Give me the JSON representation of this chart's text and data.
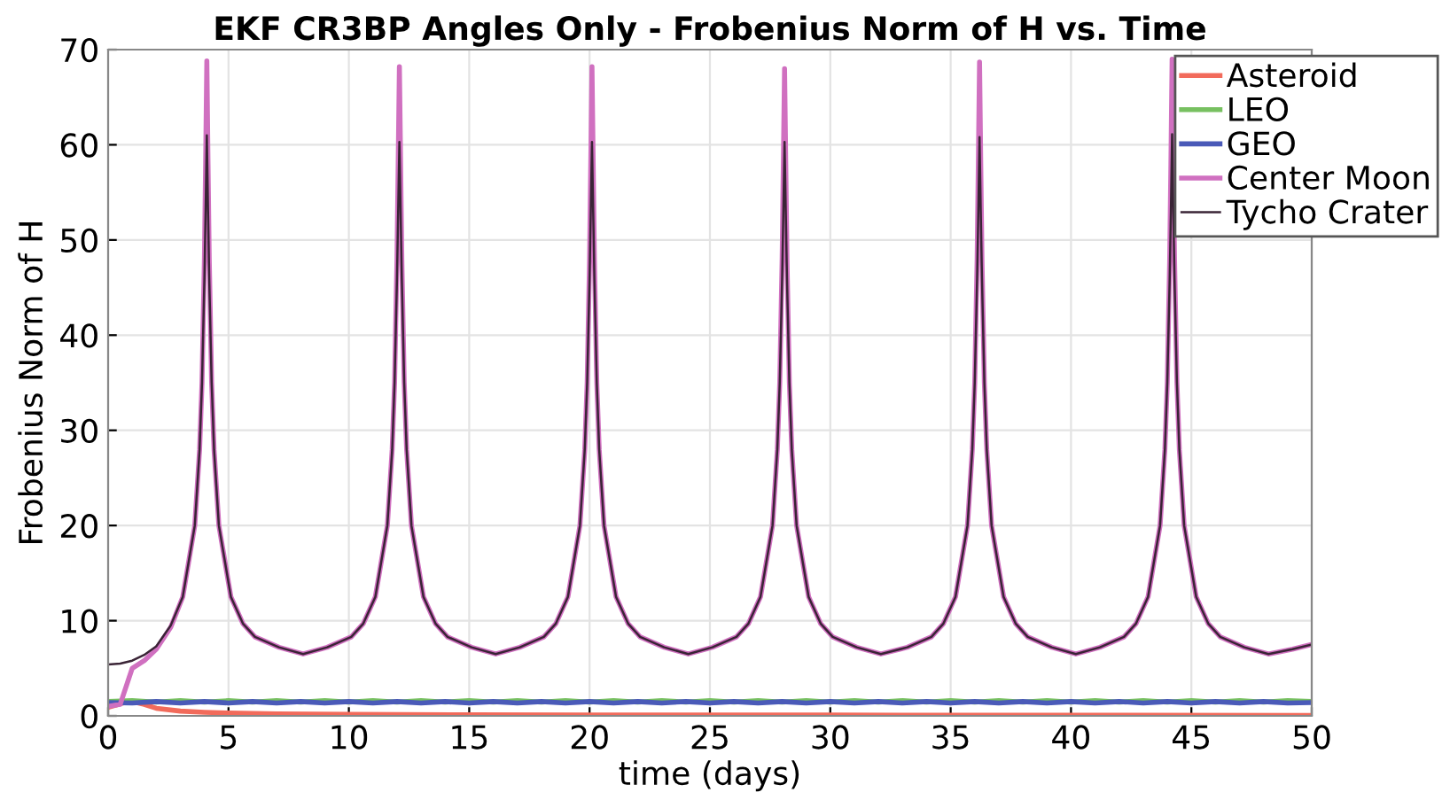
{
  "chart_data": {
    "type": "line",
    "title": "EKF CR3BP Angles Only - Frobenius Norm of H vs. Time",
    "xlabel": "time (days)",
    "ylabel": "Frobenius Norm of H",
    "xlim": [
      0,
      50
    ],
    "ylim": [
      0,
      70
    ],
    "xticks": [
      0,
      5,
      10,
      15,
      20,
      25,
      30,
      35,
      40,
      45,
      50
    ],
    "yticks": [
      0,
      10,
      20,
      30,
      40,
      50,
      60,
      70
    ],
    "grid": true,
    "legend": "top right",
    "line_style": "solid",
    "marker": "none",
    "x": [
      0,
      0.5,
      1,
      1.5,
      2,
      2.6,
      3.1,
      3.6,
      3.8,
      3.9,
      4.0,
      4.05,
      4.1,
      4.15,
      4.2,
      4.3,
      4.4,
      4.6,
      5.1,
      5.6,
      6.1,
      7.1,
      8.1,
      9.1,
      10.1,
      10.6,
      11.1,
      11.6,
      11.8,
      11.9,
      12.0,
      12.05,
      12.1,
      12.15,
      12.2,
      12.3,
      12.4,
      12.6,
      13.1,
      13.6,
      14.1,
      15.1,
      16.1,
      17.1,
      18.1,
      18.6,
      19.1,
      19.6,
      19.8,
      19.9,
      20.0,
      20.05,
      20.1,
      20.15,
      20.2,
      20.3,
      20.4,
      20.6,
      21.1,
      21.6,
      22.1,
      23.1,
      24.1,
      25.1,
      26.1,
      26.6,
      27.1,
      27.6,
      27.8,
      27.9,
      28.0,
      28.05,
      28.1,
      28.15,
      28.2,
      28.3,
      28.4,
      28.6,
      29.1,
      29.6,
      30.1,
      31.1,
      32.1,
      33.2,
      34.2,
      34.7,
      35.2,
      35.7,
      35.9,
      36.0,
      36.1,
      36.15,
      36.2,
      36.25,
      36.3,
      36.4,
      36.5,
      36.7,
      37.2,
      37.7,
      38.2,
      39.2,
      40.2,
      41.2,
      42.2,
      42.7,
      43.2,
      43.7,
      43.9,
      44.0,
      44.1,
      44.15,
      44.2,
      44.25,
      44.3,
      44.4,
      44.5,
      44.7,
      45.2,
      45.7,
      46.2,
      47.2,
      48.2,
      49.2,
      50
    ],
    "series": [
      {
        "name": "Asteroid",
        "color": "#f26b5b",
        "x": [
          0,
          0.3,
          0.6,
          1,
          1.5,
          2,
          3,
          4,
          5,
          7,
          10,
          15,
          20,
          30,
          40,
          50
        ],
        "values": [
          0.9,
          1.1,
          1.35,
          1.5,
          1.2,
          0.8,
          0.5,
          0.38,
          0.3,
          0.2,
          0.15,
          0.12,
          0.1,
          0.08,
          0.06,
          0.05
        ]
      },
      {
        "name": "LEO",
        "color": "#77c060",
        "x": [
          0,
          1,
          2,
          3,
          4,
          5,
          6,
          7,
          8,
          9,
          10,
          11,
          12,
          13,
          14,
          15,
          16,
          17,
          18,
          19,
          20,
          21,
          22,
          23,
          24,
          25,
          26,
          27,
          28,
          29,
          30,
          31,
          32,
          33,
          34,
          35,
          36,
          37,
          38,
          39,
          40,
          41,
          42,
          43,
          44,
          45,
          46,
          47,
          48,
          49,
          50
        ],
        "values": [
          1.5,
          1.6,
          1.45,
          1.6,
          1.45,
          1.6,
          1.45,
          1.6,
          1.45,
          1.6,
          1.45,
          1.6,
          1.45,
          1.6,
          1.45,
          1.6,
          1.45,
          1.6,
          1.45,
          1.6,
          1.45,
          1.6,
          1.45,
          1.6,
          1.45,
          1.6,
          1.45,
          1.6,
          1.45,
          1.6,
          1.45,
          1.6,
          1.45,
          1.6,
          1.45,
          1.6,
          1.45,
          1.6,
          1.45,
          1.6,
          1.45,
          1.6,
          1.45,
          1.6,
          1.45,
          1.6,
          1.45,
          1.6,
          1.45,
          1.6,
          1.5
        ]
      },
      {
        "name": "GEO",
        "color": "#4a5ab8",
        "x": [
          0,
          1,
          2,
          3,
          4,
          5,
          6,
          7,
          8,
          9,
          10,
          11,
          12,
          13,
          14,
          15,
          16,
          17,
          18,
          19,
          20,
          21,
          22,
          23,
          24,
          25,
          26,
          27,
          28,
          29,
          30,
          31,
          32,
          33,
          34,
          35,
          36,
          37,
          38,
          39,
          40,
          41,
          42,
          43,
          44,
          45,
          46,
          47,
          48,
          49,
          50
        ],
        "values": [
          1.4,
          1.35,
          1.5,
          1.35,
          1.5,
          1.35,
          1.5,
          1.35,
          1.5,
          1.35,
          1.5,
          1.35,
          1.5,
          1.35,
          1.5,
          1.35,
          1.5,
          1.35,
          1.5,
          1.35,
          1.5,
          1.35,
          1.5,
          1.35,
          1.5,
          1.35,
          1.5,
          1.35,
          1.5,
          1.35,
          1.5,
          1.35,
          1.5,
          1.35,
          1.5,
          1.35,
          1.5,
          1.35,
          1.5,
          1.35,
          1.5,
          1.35,
          1.5,
          1.35,
          1.5,
          1.35,
          1.5,
          1.35,
          1.5,
          1.35,
          1.4
        ]
      },
      {
        "name": "Center Moon",
        "color": "#d070c0",
        "values": [
          1.0,
          1.2,
          5.0,
          5.8,
          7.0,
          9.3,
          12.5,
          20,
          28,
          35,
          48,
          58,
          68.8,
          58,
          48,
          35,
          28,
          20,
          12.5,
          9.7,
          8.3,
          7.2,
          6.5,
          7.2,
          8.3,
          9.7,
          12.5,
          20,
          28,
          35,
          48,
          58,
          68.2,
          58,
          48,
          35,
          28,
          20,
          12.5,
          9.7,
          8.3,
          7.2,
          6.5,
          7.2,
          8.3,
          9.7,
          12.5,
          20,
          28,
          35,
          48,
          58,
          68.2,
          58,
          48,
          35,
          28,
          20,
          12.5,
          9.7,
          8.3,
          7.2,
          6.5,
          7.2,
          8.3,
          9.7,
          12.5,
          20,
          28,
          35,
          48,
          58,
          68,
          58,
          48,
          35,
          28,
          20,
          12.5,
          9.7,
          8.3,
          7.2,
          6.5,
          7.2,
          8.3,
          9.7,
          12.5,
          20,
          28,
          35,
          48,
          58,
          68.7,
          58,
          48,
          35,
          28,
          20,
          12.5,
          9.7,
          8.3,
          7.2,
          6.5,
          7.2,
          8.3,
          9.7,
          12.5,
          20,
          28,
          35,
          48,
          58,
          69,
          58,
          48,
          35,
          28,
          20,
          12.5,
          9.7,
          8.3,
          7.2,
          6.5,
          7.0,
          7.5
        ]
      },
      {
        "name": "Tycho Crater",
        "color": "#3a2436",
        "values": [
          5.4,
          5.5,
          5.8,
          6.4,
          7.3,
          9.5,
          12.5,
          20,
          28,
          35,
          46,
          53,
          61,
          53,
          46,
          35,
          28,
          20,
          12.5,
          9.7,
          8.3,
          7.2,
          6.5,
          7.2,
          8.3,
          9.7,
          12.5,
          20,
          28,
          35,
          46,
          53,
          60.3,
          53,
          46,
          35,
          28,
          20,
          12.5,
          9.7,
          8.3,
          7.2,
          6.5,
          7.2,
          8.3,
          9.7,
          12.5,
          20,
          28,
          35,
          46,
          53,
          60.3,
          53,
          46,
          35,
          28,
          20,
          12.5,
          9.7,
          8.3,
          7.2,
          6.5,
          7.2,
          8.3,
          9.7,
          12.5,
          20,
          28,
          35,
          46,
          53,
          60.3,
          53,
          46,
          35,
          28,
          20,
          12.5,
          9.7,
          8.3,
          7.2,
          6.5,
          7.2,
          8.3,
          9.7,
          12.5,
          20,
          28,
          35,
          46,
          53,
          60.8,
          53,
          46,
          35,
          28,
          20,
          12.5,
          9.7,
          8.3,
          7.2,
          6.5,
          7.2,
          8.3,
          9.7,
          12.5,
          20,
          28,
          35,
          46,
          53,
          61.1,
          53,
          46,
          35,
          28,
          20,
          12.5,
          9.7,
          8.3,
          7.2,
          6.5,
          7.0,
          7.5
        ]
      }
    ]
  }
}
